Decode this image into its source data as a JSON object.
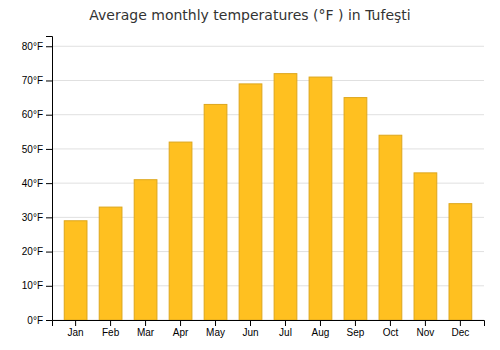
{
  "chart_data": {
    "type": "bar",
    "title": "Average monthly temperatures (°F ) in Tufeşti",
    "categories": [
      "Jan",
      "Feb",
      "Mar",
      "Apr",
      "May",
      "Jun",
      "Jul",
      "Aug",
      "Sep",
      "Oct",
      "Nov",
      "Dec"
    ],
    "values": [
      29,
      33,
      41,
      52,
      63,
      69,
      72,
      71,
      65,
      54,
      43,
      34
    ],
    "color": "#FFC020",
    "ylim": [
      0,
      83
    ],
    "yticks": [
      {
        "value": 0,
        "label": "0°F"
      },
      {
        "value": 10,
        "label": "10°F"
      },
      {
        "value": 20,
        "label": "20°F"
      },
      {
        "value": 30,
        "label": "30°F"
      },
      {
        "value": 40,
        "label": "40°F"
      },
      {
        "value": 50,
        "label": "50°F"
      },
      {
        "value": 60,
        "label": "60°F"
      },
      {
        "value": 70,
        "label": "70°F"
      },
      {
        "value": 80,
        "label": "80°F"
      }
    ],
    "grid": true
  }
}
